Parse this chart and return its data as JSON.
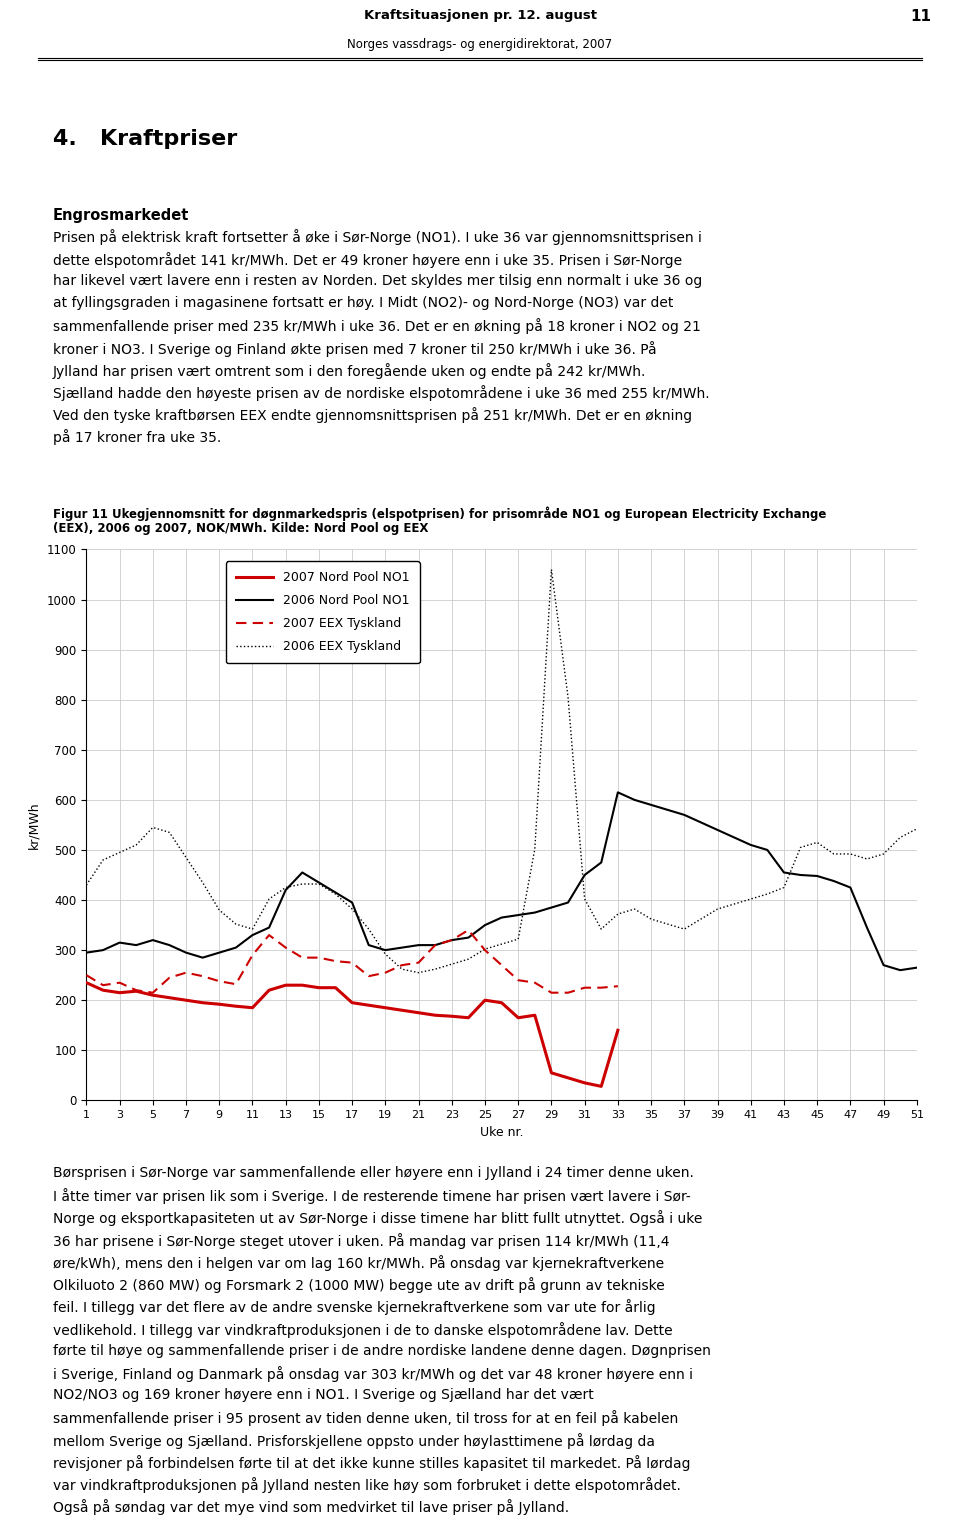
{
  "header_title": "Kraftsituasjonen pr. 12. august",
  "header_subtitle": "Norges vassdrags- og energidirektorat, 2007",
  "page_number": "11",
  "section_number": "4.",
  "section_title": "Kraftpriser",
  "subsection_title": "Engrosmarkedet",
  "body_text_1_lines": [
    "Prisen på elektrisk kraft fortsetter å øke i Sør-Norge (NO1). I uke 36 var gjennomsnittsprisen i",
    "dette elspotområdet 141 kr/MWh. Det er 49 kroner høyere enn i uke 35. Prisen i Sør-Norge",
    "har likevel vært lavere enn i resten av Norden. Det skyldes mer tilsig enn normalt i uke 36 og",
    "at fyllingsgraden i magasinene fortsatt er høy. I Midt (NO2)- og Nord-Norge (NO3) var det",
    "sammenfallende priser med 235 kr/MWh i uke 36. Det er en økning på 18 kroner i NO2 og 21",
    "kroner i NO3. I Sverige og Finland økte prisen med 7 kroner til 250 kr/MWh i uke 36. På",
    "Jylland har prisen vært omtrent som i den foregående uken og endte på 242 kr/MWh.",
    "Sjælland hadde den høyeste prisen av de nordiske elspotområdene i uke 36 med 255 kr/MWh.",
    "Ved den tyske kraftbørsen EEX endte gjennomsnittsprisen på 251 kr/MWh. Det er en økning",
    "på 17 kroner fra uke 35."
  ],
  "figure_caption_line1": "Figur 11 Ukegjennomsnitt for døgnmarkedspris (elspotprisen) for prisområde NO1 og European Electricity Exchange",
  "figure_caption_line2": "(EEX), 2006 og 2007, NOK/MWh. Kilde: Nord Pool og EEX",
  "ylabel": "kr/MWh",
  "xlabel": "Uke nr.",
  "yticks": [
    0,
    100,
    200,
    300,
    400,
    500,
    600,
    700,
    800,
    900,
    1000,
    1100
  ],
  "xticks": [
    1,
    3,
    5,
    7,
    9,
    11,
    13,
    15,
    17,
    19,
    21,
    23,
    25,
    27,
    29,
    31,
    33,
    35,
    37,
    39,
    41,
    43,
    45,
    47,
    49,
    51
  ],
  "series_2007_nordpool": [
    235,
    220,
    215,
    218,
    210,
    205,
    200,
    195,
    192,
    188,
    185,
    220,
    230,
    230,
    225,
    225,
    195,
    190,
    185,
    180,
    175,
    170,
    168,
    165,
    200,
    195,
    165,
    170,
    55,
    45,
    35,
    28,
    140,
    null,
    null,
    null,
    null,
    null,
    null,
    null,
    null,
    null,
    null,
    null,
    null,
    null,
    null,
    null,
    null,
    null,
    null
  ],
  "series_2006_nordpool": [
    295,
    300,
    315,
    310,
    320,
    310,
    295,
    285,
    295,
    305,
    330,
    345,
    420,
    455,
    435,
    415,
    395,
    310,
    300,
    305,
    310,
    310,
    320,
    325,
    350,
    365,
    370,
    375,
    385,
    395,
    450,
    475,
    615,
    600,
    590,
    580,
    570,
    555,
    540,
    525,
    510,
    500,
    455,
    450,
    448,
    438,
    425,
    345,
    270,
    260,
    265
  ],
  "series_2007_eex": [
    250,
    230,
    235,
    220,
    215,
    245,
    255,
    248,
    238,
    232,
    290,
    330,
    305,
    285,
    285,
    278,
    275,
    248,
    255,
    270,
    275,
    310,
    320,
    340,
    300,
    270,
    240,
    235,
    215,
    215,
    225,
    225,
    228,
    null,
    null,
    null,
    null,
    null,
    null,
    null,
    null,
    null,
    null,
    null,
    null,
    null,
    null,
    null,
    null,
    null,
    null
  ],
  "series_2006_eex": [
    430,
    480,
    495,
    510,
    545,
    535,
    485,
    435,
    380,
    352,
    342,
    402,
    425,
    432,
    432,
    412,
    382,
    342,
    292,
    262,
    255,
    262,
    272,
    282,
    302,
    312,
    322,
    502,
    1060,
    805,
    402,
    342,
    372,
    382,
    362,
    352,
    342,
    362,
    382,
    392,
    402,
    412,
    425,
    505,
    515,
    492,
    492,
    482,
    492,
    525,
    542
  ],
  "body_text_2_lines": [
    "Børsprisen i Sør-Norge var sammenfallende eller høyere enn i Jylland i 24 timer denne uken.",
    "I åtte timer var prisen lik som i Sverige. I de resterende timene har prisen vært lavere i Sør-",
    "Norge og eksportkapasiteten ut av Sør-Norge i disse timene har blitt fullt utnyttet. Også i uke",
    "36 har prisene i Sør-Norge steget utover i uken. På mandag var prisen 114 kr/MWh (11,4",
    "øre/kWh), mens den i helgen var om lag 160 kr/MWh. På onsdag var kjernekraftverkene",
    "Olkiluoto 2 (860 MW) og Forsmark 2 (1000 MW) begge ute av drift på grunn av tekniske",
    "feil. I tillegg var det flere av de andre svenske kjernekraftverkene som var ute for årlig",
    "vedlikehold. I tillegg var vindkraftproduksjonen i de to danske elspotområdene lav. Dette",
    "førte til høye og sammenfallende priser i de andre nordiske landene denne dagen. Døgnprisen",
    "i Sverige, Finland og Danmark på onsdag var 303 kr/MWh og det var 48 kroner høyere enn i",
    "NO2/NO3 og 169 kroner høyere enn i NO1. I Sverige og Sjælland har det vært",
    "sammenfallende priser i 95 prosent av tiden denne uken, til tross for at en feil på kabelen",
    "mellom Sverige og Sjælland. Prisforskjellene oppsto under høylasttimene på lørdag da",
    "revisjoner på forbindelsen førte til at det ikke kunne stilles kapasitet til markedet. På lørdag",
    "var vindkraftproduksjonen på Jylland nesten like høy som forbruket i dette elspotområdet.",
    "Også på søndag var det mye vind som medvirket til lave priser på Jylland."
  ]
}
